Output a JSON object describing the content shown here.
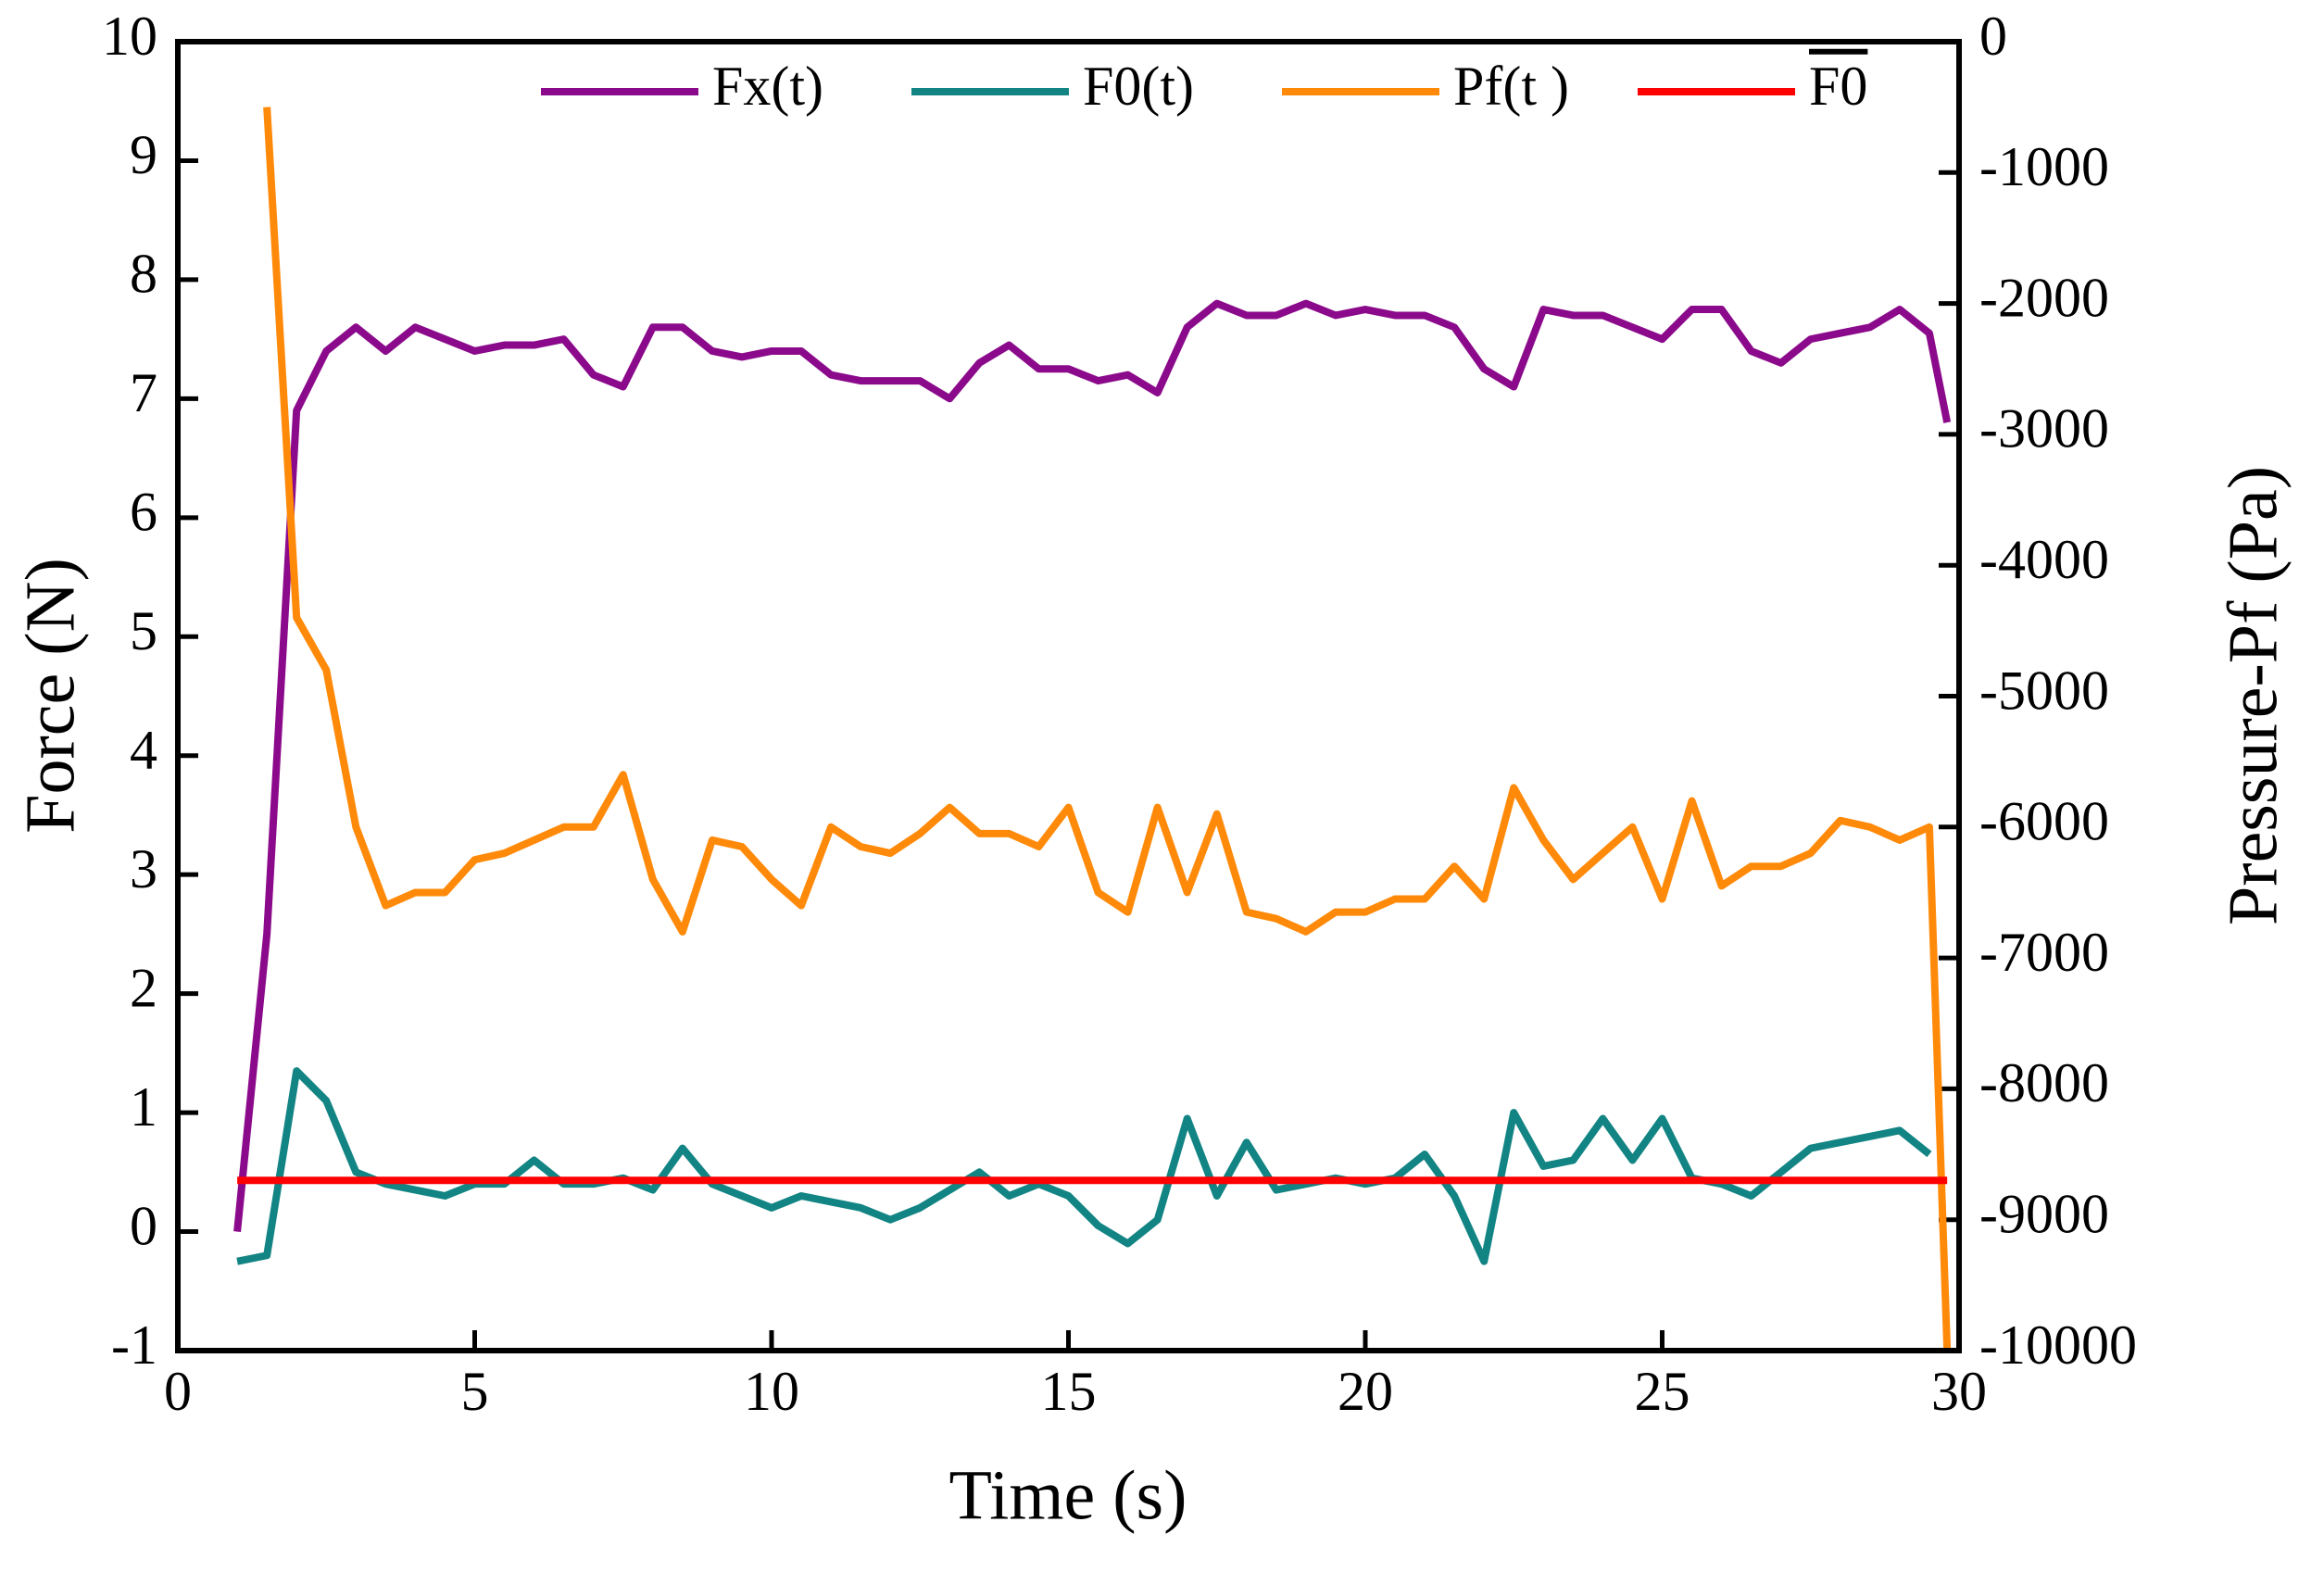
{
  "chart_data": {
    "type": "line",
    "xlabel": "Time (s)",
    "ylabel": "Force (N)",
    "y2label": "Pressure-Pf (Pa)",
    "x": [
      1,
      1.5,
      2,
      2.5,
      3,
      3.5,
      4,
      4.5,
      5,
      5.5,
      6,
      6.5,
      7,
      7.5,
      8,
      8.5,
      9,
      9.5,
      10,
      10.5,
      11,
      11.5,
      12,
      12.5,
      13,
      13.5,
      14,
      14.5,
      15,
      15.5,
      16,
      16.5,
      17,
      17.5,
      18,
      18.5,
      19,
      19.5,
      20,
      20.5,
      21,
      21.5,
      22,
      22.5,
      23,
      23.5,
      24,
      24.5,
      25,
      25.5,
      26,
      26.5,
      27,
      27.5,
      28,
      28.5,
      29,
      29.5,
      29.8
    ],
    "series": [
      {
        "name": "Fx(t)",
        "color": "#8b0a8b",
        "values": [
          0,
          2.5,
          6.9,
          7.4,
          7.6,
          7.4,
          7.6,
          7.5,
          7.4,
          7.45,
          7.45,
          7.5,
          7.2,
          7.1,
          7.6,
          7.6,
          7.4,
          7.35,
          7.4,
          7.4,
          7.2,
          7.15,
          7.15,
          7.15,
          7.0,
          7.3,
          7.45,
          7.25,
          7.25,
          7.15,
          7.2,
          7.05,
          7.6,
          7.8,
          7.7,
          7.7,
          7.8,
          7.7,
          7.75,
          7.7,
          7.7,
          7.6,
          7.25,
          7.1,
          7.75,
          7.7,
          7.7,
          7.6,
          7.5,
          7.75,
          7.75,
          7.4,
          7.3,
          7.5,
          7.55,
          7.6,
          7.75,
          7.55,
          6.8
        ]
      },
      {
        "name": "F0(t)",
        "color": "#138484",
        "values": [
          -0.25,
          -0.2,
          1.35,
          1.1,
          0.5,
          0.4,
          0.35,
          0.3,
          0.4,
          0.4,
          0.6,
          0.4,
          0.4,
          0.45,
          0.35,
          0.7,
          0.4,
          0.3,
          0.2,
          0.3,
          0.25,
          0.2,
          0.1,
          0.2,
          0.35,
          0.5,
          0.3,
          0.4,
          0.3,
          0.05,
          -0.1,
          0.1,
          0.95,
          0.3,
          0.75,
          0.35,
          0.4,
          0.45,
          0.4,
          0.45,
          0.65,
          0.3,
          -0.25,
          1.0,
          0.55,
          0.6,
          0.95,
          0.6,
          0.95,
          0.45,
          0.4,
          0.3,
          0.5,
          0.7,
          0.75,
          0.8,
          0.85,
          0.65,
          null
        ]
      },
      {
        "name": "Pf(t )",
        "color": "#ff8a0a",
        "axis": "y2",
        "values": [
          null,
          -500,
          -4400,
          -4800,
          -6000,
          -6600,
          -6500,
          -6500,
          -6250,
          -6200,
          -6100,
          -6000,
          -6000,
          -5600,
          -6400,
          -6800,
          -6100,
          -6150,
          -6400,
          -6600,
          -6000,
          -6150,
          -6200,
          -6050,
          -5850,
          -6050,
          -6050,
          -6150,
          -5850,
          -6500,
          -6650,
          -5850,
          -6500,
          -5900,
          -6650,
          -6700,
          -6800,
          -6650,
          -6650,
          -6550,
          -6550,
          -6300,
          -6550,
          -5700,
          -6100,
          -6400,
          -6200,
          -6000,
          -6550,
          -5800,
          -6450,
          -6300,
          -6300,
          -6200,
          -5950,
          -6000,
          -6100,
          -6000,
          -10000
        ]
      },
      {
        "name": "F0",
        "color": "#ff0000",
        "values": [
          0.43,
          0.43,
          0.43,
          0.43,
          0.43,
          0.43,
          0.43,
          0.43,
          0.43,
          0.43,
          0.43,
          0.43,
          0.43,
          0.43,
          0.43,
          0.43,
          0.43,
          0.43,
          0.43,
          0.43,
          0.43,
          0.43,
          0.43,
          0.43,
          0.43,
          0.43,
          0.43,
          0.43,
          0.43,
          0.43,
          0.43,
          0.43,
          0.43,
          0.43,
          0.43,
          0.43,
          0.43,
          0.43,
          0.43,
          0.43,
          0.43,
          0.43,
          0.43,
          0.43,
          0.43,
          0.43,
          0.43,
          0.43,
          0.43,
          0.43,
          0.43,
          0.43,
          0.43,
          0.43,
          0.43,
          0.43,
          0.43,
          0.43,
          0.43
        ]
      }
    ],
    "xlim": [
      0,
      30
    ],
    "xticks": [
      0,
      5,
      10,
      15,
      20,
      25,
      30
    ],
    "ylim": [
      -1,
      10
    ],
    "yticks": [
      -1,
      0,
      1,
      2,
      3,
      4,
      5,
      6,
      7,
      8,
      9,
      10
    ],
    "y2lim": [
      -10000,
      0
    ],
    "y2ticks": [
      -10000,
      -9000,
      -8000,
      -7000,
      -6000,
      -5000,
      -4000,
      -3000,
      -2000,
      -1000,
      0
    ],
    "legend": "top"
  }
}
